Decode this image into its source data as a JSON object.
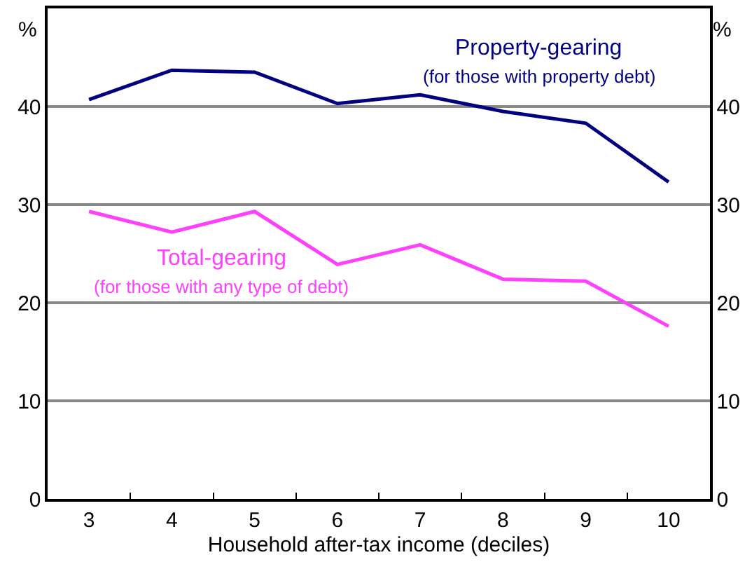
{
  "chart_data": {
    "type": "line",
    "xlabel": "Household after-tax income (deciles)",
    "ylabel": "%",
    "y2label": "%",
    "categories": [
      "3",
      "4",
      "5",
      "6",
      "7",
      "8",
      "9",
      "10"
    ],
    "series": [
      {
        "name": "Property-gearing",
        "color": "#000080",
        "values": [
          40.7,
          43.7,
          43.5,
          40.3,
          41.2,
          39.5,
          38.3,
          32.3
        ]
      },
      {
        "name": "Total-gearing",
        "color": "#ff40ff",
        "values": [
          29.3,
          27.2,
          29.3,
          23.9,
          25.9,
          22.4,
          22.2,
          17.6
        ]
      }
    ],
    "annotations": [
      "(for those with property debt)",
      "(for those with any type of debt)"
    ],
    "ylim": [
      0,
      50
    ],
    "yticks": [
      0,
      10,
      20,
      30,
      40
    ],
    "y2lim": [
      0,
      50
    ],
    "y2ticks": [
      0,
      10,
      20,
      30,
      40
    ],
    "grid": "y",
    "legend": false,
    "marker": "none",
    "line_style": "solid"
  }
}
